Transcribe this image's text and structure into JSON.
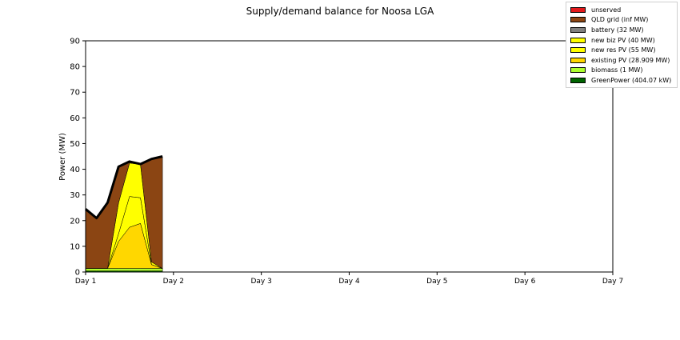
{
  "chart_data": {
    "type": "area",
    "title": "Supply/demand balance for Noosa LGA",
    "xlabel": "",
    "ylabel": "Power (MW)",
    "xlim": [
      0,
      6
    ],
    "ylim": [
      0,
      90
    ],
    "x_ticks": [
      "Day 1",
      "Day 2",
      "Day 3",
      "Day 4",
      "Day 5",
      "Day 6",
      "Day 7"
    ],
    "y_ticks": [
      0,
      10,
      20,
      30,
      40,
      50,
      60,
      70,
      80,
      90
    ],
    "grid": false,
    "legend_position": "top-right",
    "stack_order": [
      "GreenPower (404.07 kW)",
      "biomass (1 MW)",
      "existing PV (28.909 MW)",
      "new res PV (55 MW)",
      "new biz PV (40 MW)",
      "battery (32 MW)",
      "QLD grid (inf MW)",
      "unserved"
    ],
    "x": [
      0,
      0.125,
      0.25,
      0.375,
      0.5,
      0.625,
      0.75,
      0.875
    ],
    "demand": [
      24.5,
      21,
      27,
      41,
      43,
      42,
      44,
      45
    ],
    "series": [
      {
        "name": "unserved",
        "color": "#e31a1c",
        "values": [
          0,
          0,
          0,
          0,
          0,
          0,
          0,
          0
        ]
      },
      {
        "name": "QLD grid (inf MW)",
        "color": "#8b4513",
        "values": [
          23,
          19.5,
          25.5,
          14,
          0.5,
          0,
          40,
          43.5
        ]
      },
      {
        "name": "battery (32 MW)",
        "color": "#808080",
        "values": [
          0,
          0,
          0,
          0,
          0,
          0,
          0,
          0
        ]
      },
      {
        "name": "new biz PV (40 MW)",
        "color": "#ffff00",
        "values": [
          0,
          0,
          0,
          12,
          13,
          13,
          1,
          0
        ]
      },
      {
        "name": "new res PV (55 MW)",
        "color": "#ffff00",
        "values": [
          0,
          0,
          0,
          3,
          12,
          10,
          0,
          0
        ]
      },
      {
        "name": "existing PV (28.909 MW)",
        "color": "#ffd700",
        "values": [
          0,
          0,
          0,
          10.5,
          16,
          17.5,
          1.5,
          0
        ]
      },
      {
        "name": "biomass (1 MW)",
        "color": "#adff2f",
        "values": [
          1,
          1,
          1,
          1,
          1,
          1,
          1,
          1
        ]
      },
      {
        "name": "GreenPower (404.07 kW)",
        "color": "#006400",
        "values": [
          0.4,
          0.4,
          0.4,
          0.4,
          0.4,
          0.4,
          0.4,
          0.4
        ]
      }
    ]
  }
}
